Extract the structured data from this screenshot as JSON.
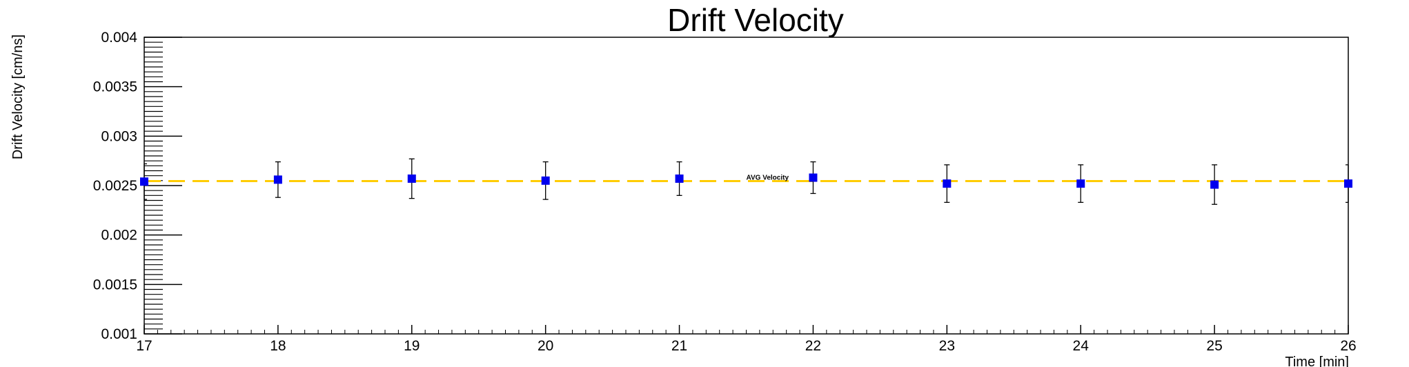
{
  "chart_data": {
    "type": "scatter",
    "title": "Drift Velocity",
    "xlabel": "Time [min]",
    "ylabel": "Drift Velocity [cm/ns]",
    "xlim": [
      17,
      26
    ],
    "ylim": [
      0.001,
      0.004
    ],
    "x_ticks": [
      "17",
      "18",
      "19",
      "20",
      "21",
      "22",
      "23",
      "24",
      "25",
      "26"
    ],
    "y_ticks": [
      "0.001",
      "0.0015",
      "0.002",
      "0.0025",
      "0.003",
      "0.0035",
      "0.004"
    ],
    "grid": false,
    "series": [
      {
        "marker": "square",
        "color": "#0000ee",
        "x": [
          17,
          18,
          19,
          20,
          21,
          22,
          23,
          24,
          25,
          26
        ],
        "y": [
          0.00254,
          0.00256,
          0.00257,
          0.00255,
          0.00257,
          0.00258,
          0.00252,
          0.00252,
          0.00251,
          0.00252
        ],
        "y_err": [
          0.00018,
          0.00018,
          0.0002,
          0.00019,
          0.00017,
          0.00016,
          0.00019,
          0.00019,
          0.0002,
          0.00019
        ]
      }
    ],
    "reference_line": {
      "label": "AVG Velocity",
      "value": 0.002545,
      "color": "#ffcc00",
      "style": "dashed"
    }
  }
}
